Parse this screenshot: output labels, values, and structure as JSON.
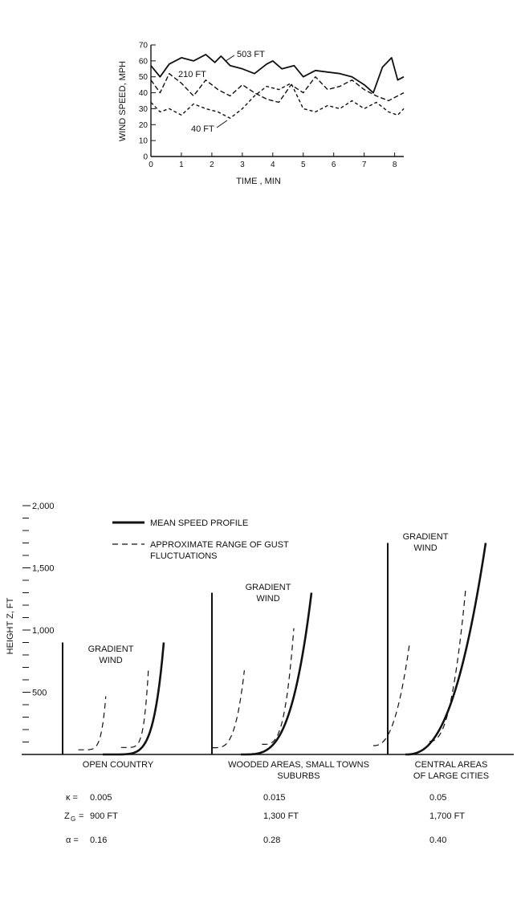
{
  "chart_data": [
    {
      "type": "line",
      "xlabel": "TIME , MIN",
      "ylabel": "WIND SPEED, MPH",
      "xlim": [
        0,
        8.3
      ],
      "ylim": [
        0,
        70
      ],
      "x_ticks": [
        "0",
        "1",
        "2",
        "3",
        "4",
        "5",
        "6",
        "7",
        "8"
      ],
      "y_ticks": [
        "0",
        "10",
        "20",
        "30",
        "40",
        "50",
        "60",
        "70"
      ],
      "series": [
        {
          "name": "503 FT",
          "style": "solid",
          "x": [
            0,
            0.3,
            0.6,
            1.0,
            1.4,
            1.8,
            2.1,
            2.3,
            2.6,
            3.0,
            3.4,
            3.8,
            4.0,
            4.3,
            4.7,
            5.0,
            5.4,
            5.8,
            6.2,
            6.6,
            7.0,
            7.3,
            7.6,
            7.9,
            8.1,
            8.3
          ],
          "y": [
            57,
            50,
            58,
            62,
            60,
            64,
            59,
            63,
            57,
            55,
            52,
            58,
            60,
            55,
            57,
            50,
            54,
            53,
            52,
            50,
            45,
            40,
            56,
            62,
            48,
            50
          ]
        },
        {
          "name": "210 FT",
          "style": "dashed",
          "x": [
            0,
            0.3,
            0.6,
            1.0,
            1.4,
            1.8,
            2.2,
            2.6,
            3.0,
            3.4,
            3.8,
            4.2,
            4.6,
            5.0,
            5.4,
            5.8,
            6.2,
            6.6,
            7.0,
            7.4,
            7.8,
            8.1,
            8.3
          ],
          "y": [
            48,
            40,
            52,
            46,
            38,
            48,
            42,
            38,
            45,
            40,
            36,
            34,
            45,
            40,
            50,
            42,
            44,
            48,
            42,
            38,
            35,
            38,
            40
          ]
        },
        {
          "name": "40 FT",
          "style": "dashed",
          "x": [
            0,
            0.3,
            0.6,
            1.0,
            1.4,
            1.8,
            2.2,
            2.6,
            3.0,
            3.4,
            3.8,
            4.2,
            4.6,
            5.0,
            5.4,
            5.8,
            6.2,
            6.6,
            7.0,
            7.4,
            7.8,
            8.1,
            8.3
          ],
          "y": [
            34,
            28,
            30,
            26,
            33,
            30,
            28,
            24,
            30,
            38,
            44,
            42,
            46,
            30,
            28,
            32,
            30,
            35,
            30,
            34,
            28,
            26,
            30
          ]
        }
      ]
    },
    {
      "type": "line",
      "ylabel": "HEIGHT Z, FT",
      "ylim": [
        0,
        2000
      ],
      "y_ticks": [
        {
          "value": 500,
          "label": "500"
        },
        {
          "value": 1000,
          "label": "1,000"
        },
        {
          "value": 1500,
          "label": "1,500"
        },
        {
          "value": 2000,
          "label": "2,000"
        }
      ],
      "legend": {
        "placement": "top",
        "solid": "MEAN SPEED PROFILE",
        "dashed_line1": "APPROXIMATE RANGE OF GUST",
        "dashed_line2": "FLUCTUATIONS"
      },
      "gradient_label_line1": "GRADIENT",
      "gradient_label_line2": "WIND",
      "terrains": [
        {
          "name_line1": "OPEN COUNTRY",
          "name_line2": "",
          "zg": 900,
          "kappa": "0.005",
          "zg_text": "900 FT",
          "alpha": "0.16"
        },
        {
          "name_line1": "WOODED AREAS, SMALL TOWNS",
          "name_line2": "SUBURBS",
          "zg": 1300,
          "kappa": "0.015",
          "zg_text": "1,300 FT",
          "alpha": "0.28"
        },
        {
          "name_line1": "CENTRAL AREAS",
          "name_line2": "OF LARGE CITIES",
          "zg": 1700,
          "kappa": "0.05",
          "zg_text": "1,700 FT",
          "alpha": "0.40"
        }
      ],
      "parameter_labels": {
        "kappa": "κ =",
        "zg": "Z",
        "zg_sub": "G",
        "zg_eq": "=",
        "alpha": "α ="
      }
    }
  ]
}
